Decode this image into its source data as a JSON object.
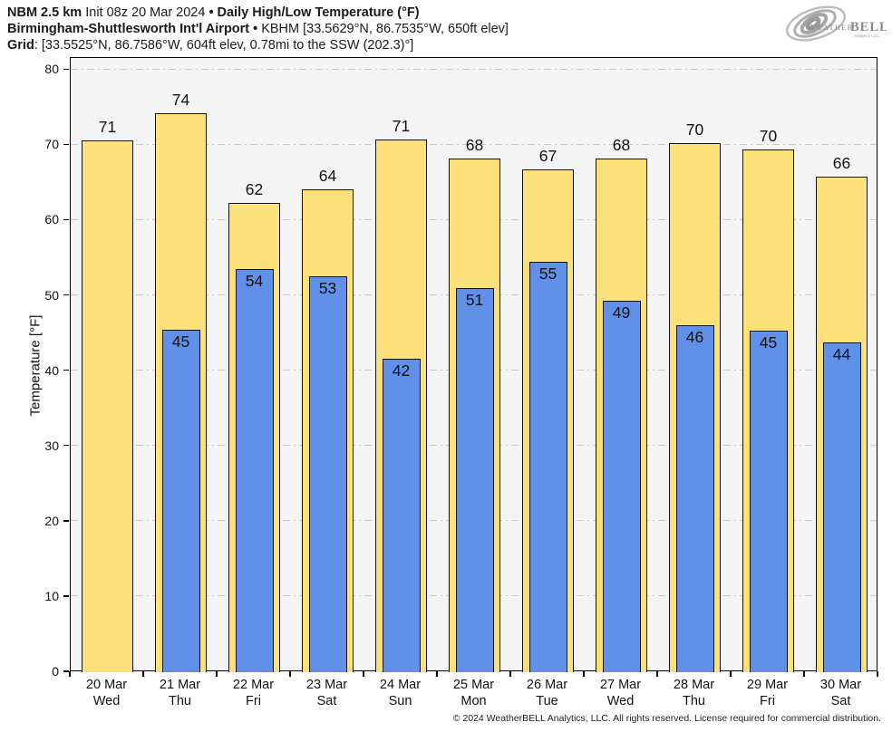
{
  "title": {
    "model": "NBM 2.5 km",
    "init": "Init 08z 20 Mar 2024",
    "bullet": "•",
    "product": "Daily High/Low Temperature (°F)",
    "station_name": "Birmingham-Shuttlesworth Int'l Airport",
    "station_meta": "KBHM [33.5629°N, 86.7535°W, 650ft elev]",
    "grid_label": "Grid",
    "grid_meta": ": [33.5525°N, 86.7586°W, 604ft elev, 0.78mi to the SSW (202.3)°]"
  },
  "logo": {
    "name": "weatherbell-logo",
    "text_weather": "Weather",
    "text_bell": "BELL",
    "text_sub": "Analytics LLC"
  },
  "footer": {
    "copyright": "© 2024 WeatherBELL Analytics, LLC. All rights reserved. License required for commercial distribution."
  },
  "chart_data": {
    "type": "bar",
    "title": "NBM 2.5 km Daily High/Low Temperature (°F) — Birmingham-Shuttlesworth Int'l Airport (KBHM)",
    "xlabel": "",
    "ylabel": "Temperature [°F]",
    "ylim": [
      0,
      81.6
    ],
    "yticks": [
      0,
      10,
      20,
      30,
      40,
      50,
      60,
      70,
      80
    ],
    "grid": "horizontal dash-dot",
    "legend": "none",
    "categories": [
      {
        "date": "20 Mar",
        "day": "Wed"
      },
      {
        "date": "21 Mar",
        "day": "Thu"
      },
      {
        "date": "22 Mar",
        "day": "Fri"
      },
      {
        "date": "23 Mar",
        "day": "Sat"
      },
      {
        "date": "24 Mar",
        "day": "Sun"
      },
      {
        "date": "25 Mar",
        "day": "Mon"
      },
      {
        "date": "26 Mar",
        "day": "Tue"
      },
      {
        "date": "27 Mar",
        "day": "Wed"
      },
      {
        "date": "28 Mar",
        "day": "Thu"
      },
      {
        "date": "29 Mar",
        "day": "Fri"
      },
      {
        "date": "30 Mar",
        "day": "Sat"
      }
    ],
    "series": [
      {
        "name": "Daily High",
        "color": "#fce07a",
        "labels": [
          "71",
          "74",
          "62",
          "64",
          "71",
          "68",
          "67",
          "68",
          "70",
          "70",
          "66"
        ],
        "values": [
          70.7,
          74.2,
          62.4,
          64.2,
          70.8,
          68.2,
          66.8,
          68.3,
          70.3,
          69.5,
          65.8
        ]
      },
      {
        "name": "Daily Low",
        "color": "#6190e8",
        "labels": [
          null,
          "45",
          "54",
          "53",
          "42",
          "51",
          "55",
          "49",
          "46",
          "45",
          "44"
        ],
        "values": [
          null,
          45.5,
          53.6,
          52.6,
          41.6,
          51.0,
          54.5,
          49.4,
          46.1,
          45.4,
          43.8
        ]
      }
    ]
  }
}
